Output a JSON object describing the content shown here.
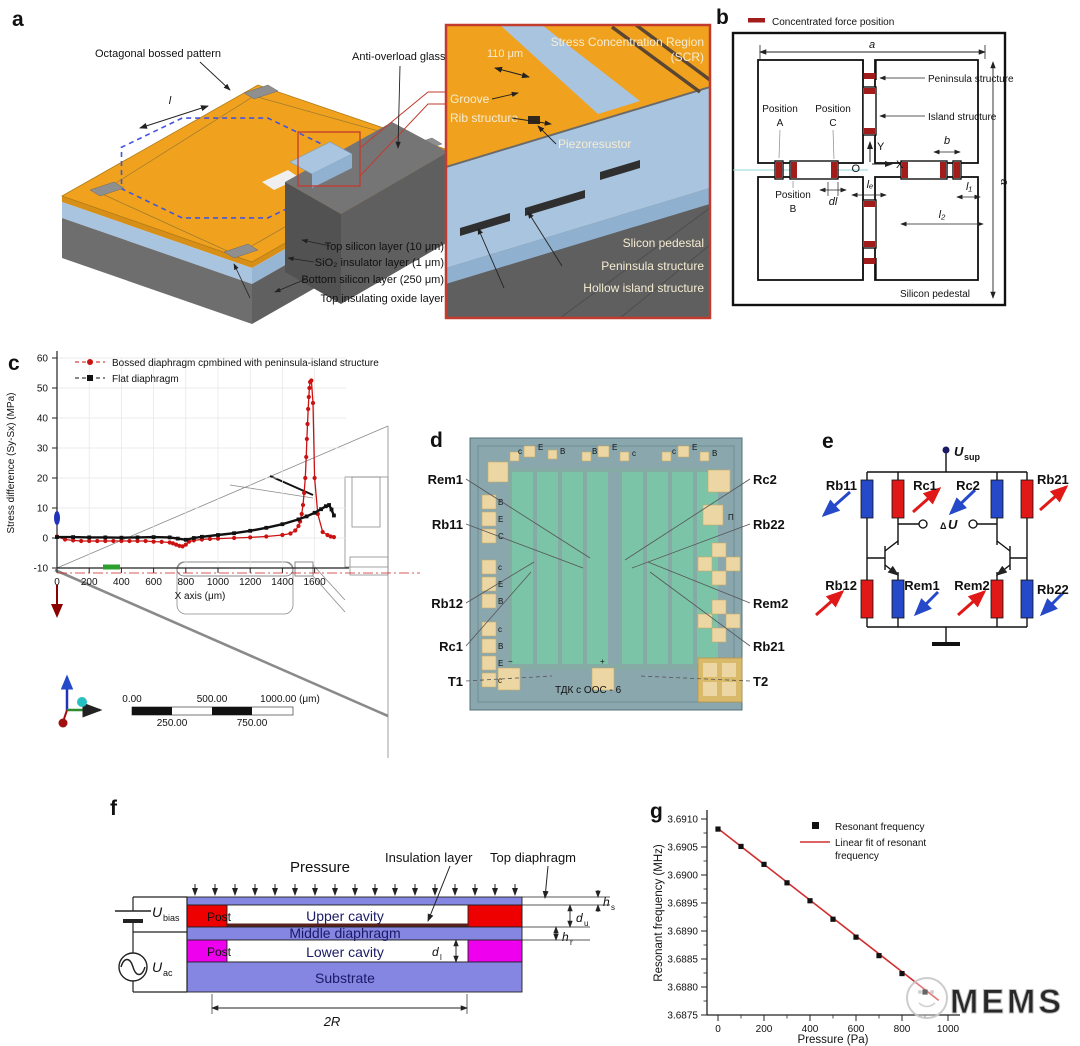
{
  "figure": {
    "watermark": "MEMS"
  },
  "colors": {
    "device_orange": "#f0a11e",
    "silicon_blue": "#a9c4de",
    "pedestal_gray": "#6e6e6e",
    "inset_border_red": "#c23b2e",
    "force_red": "#a21c1c",
    "resistor_red": "#e01818",
    "resistor_blue": "#2549c8",
    "layer_purple": "#8585e2",
    "post_red": "#ee0000",
    "post_magenta": "#ee00ee",
    "series_red": "#cc1111",
    "fit_red": "#d03030"
  },
  "panels": {
    "a": {
      "label": "a",
      "labels": {
        "octagonal": "Octagonal bossed pattern",
        "glass": "Anti-overload glass",
        "dim_l": "l",
        "top_si": "Top silicon layer (10 μm)",
        "sio2": "SiO₂ insulator layer (1 μm)",
        "bottom_si": "Bottom silicon layer (250 μm)",
        "top_oxide": "Top insulating oxide layer"
      },
      "inset": {
        "scr_line1": "Stress Concentration Region",
        "scr_line2": "(SCR)",
        "dim": "110 μm",
        "groove": "Groove",
        "rib": "Rib structure",
        "piezo": "Piezoresustor",
        "pedestal": "Slicon pedestal",
        "peninsula": "Peninsula structure",
        "hollow": "Hollow island structure"
      }
    },
    "b": {
      "label": "b",
      "legend": "Concentrated force position",
      "peninsula": "Peninsula structure",
      "island": "Island structure",
      "pos_word": "Position",
      "pos_a": "A",
      "pos_b": "B",
      "pos_c": "C",
      "pedestal": "Silicon pedestal",
      "axis_x": "X",
      "axis_y": "Y",
      "origin": "O",
      "dim_a": "a",
      "dim_b": "b",
      "dim_l1": "l₁",
      "dim_l2": "l₂",
      "dim_le": "lₑ",
      "dim_dl": "dl"
    },
    "c": {
      "label": "c",
      "scalebar": {
        "t0": "0.00",
        "t500": "500.00",
        "t1000": "1000.00 (μm)",
        "b250": "250.00",
        "b750": "750.00"
      }
    },
    "d": {
      "label": "d",
      "left_labels": [
        "Rem1",
        "Rb11",
        "Rb12",
        "Rc1",
        "T1"
      ],
      "right_labels": [
        "Rc2",
        "Rb22",
        "Rem2",
        "Rb21",
        "T2"
      ],
      "chip_text": "ТДК с ООС - 6",
      "pad_pi": "П",
      "minus": "−",
      "plus": "+",
      "top_letters": [
        "c",
        "E",
        "B",
        "B",
        "E",
        "c",
        "c",
        "E",
        "B"
      ],
      "left_letters": [
        "B",
        "E",
        "C",
        "c",
        "E",
        "B",
        "c",
        "B",
        "E",
        "c"
      ]
    },
    "e": {
      "label": "e",
      "supply_main": "U",
      "supply_sub": "sup",
      "delta": "Δ",
      "delta_u": "U",
      "r_top": [
        "Rb11",
        "Rc1",
        "Rc2",
        "Rb21"
      ],
      "r_bottom": [
        "Rb12",
        "Rem1",
        "Rem2",
        "Rb22"
      ]
    },
    "f": {
      "label": "f",
      "pressure": "Pressure",
      "insulation": "Insulation layer",
      "top_diaphragm": "Top diaphragm",
      "upper_cavity": "Upper cavity",
      "middle_diaphragm": "Middle diaphragm",
      "lower_cavity": "Lower cavity",
      "substrate": "Substrate",
      "post_upper": "Post",
      "post_lower": "Post",
      "u_bias_main": "U",
      "u_bias_sub": "bias",
      "u_ac_main": "U",
      "u_ac_sub": "ac",
      "dim_hs_main": "h",
      "dim_hs_sub": "s",
      "dim_du_main": "d",
      "dim_du_sub": "u",
      "dim_hr_main": "h",
      "dim_hr_sub": "r",
      "dim_dl_main": "d",
      "dim_dl_sub": "l",
      "dim_2r": "2R"
    },
    "g": {
      "label": "g",
      "legend1": "Resonant frequency",
      "legend2a": "Linear fit of resonant",
      "legend2b": "frequency"
    }
  },
  "chart_data": [
    {
      "id": "panel-c",
      "type": "line",
      "title": "",
      "xlabel": "X axis (μm)",
      "ylabel": "Stress difference (Sy-Sx) (MPa)",
      "xlim": [
        0,
        1780
      ],
      "ylim": [
        -10,
        60
      ],
      "grid": true,
      "legend_position": "top-left",
      "xticks": [
        0,
        200,
        400,
        600,
        800,
        1000,
        1200,
        1400,
        1600
      ],
      "yticks": [
        -10,
        0,
        10,
        20,
        30,
        40,
        50,
        60
      ],
      "series": [
        {
          "name": "Bossed diaphragm cpmbined with peninsula-island structure",
          "color": "#cc1111",
          "marker": "circle",
          "x": [
            0,
            50,
            100,
            150,
            200,
            250,
            300,
            350,
            400,
            450,
            500,
            550,
            600,
            650,
            700,
            720,
            740,
            760,
            780,
            800,
            820,
            850,
            900,
            950,
            1000,
            1100,
            1200,
            1300,
            1400,
            1450,
            1480,
            1500,
            1510,
            1520,
            1528,
            1535,
            1542,
            1548,
            1552,
            1556,
            1560,
            1564,
            1568,
            1572,
            1580,
            1590,
            1600,
            1620,
            1650,
            1680,
            1700,
            1720
          ],
          "y": [
            0.5,
            -0.5,
            -0.8,
            -1,
            -1,
            -1,
            -1,
            -1,
            -1,
            -1,
            -1,
            -1,
            -1.2,
            -1.3,
            -1.5,
            -1.8,
            -2.2,
            -2.6,
            -2.8,
            -2.2,
            -1.2,
            -0.8,
            -0.5,
            -0.3,
            -0.2,
            0,
            0.2,
            0.5,
            1,
            1.5,
            2.5,
            4,
            5.5,
            8,
            11,
            15,
            20,
            27,
            33,
            38,
            43,
            47,
            50,
            52,
            52.5,
            45,
            20,
            8,
            2,
            1,
            0.5,
            0.3
          ]
        },
        {
          "name": "Flat diaphragm",
          "color": "#111111",
          "marker": "square",
          "x": [
            0,
            100,
            200,
            300,
            400,
            500,
            600,
            700,
            750,
            800,
            850,
            900,
            1000,
            1100,
            1200,
            1300,
            1400,
            1500,
            1550,
            1600,
            1640,
            1670,
            1690,
            1705,
            1720
          ],
          "y": [
            0.3,
            0.3,
            0.2,
            0.2,
            0.1,
            0.2,
            0.3,
            0.2,
            -0.2,
            -0.6,
            0,
            0.4,
            1,
            1.6,
            2.4,
            3.4,
            4.6,
            6.2,
            7.2,
            8.4,
            9.6,
            10.6,
            11,
            9.5,
            7.5
          ]
        }
      ]
    },
    {
      "id": "panel-g",
      "type": "scatter",
      "xlabel": "Pressure (Pa)",
      "ylabel": "Resonant frequency (MHz)",
      "xlim": [
        -40,
        1060
      ],
      "ylim": [
        3.6873,
        3.6912
      ],
      "grid": false,
      "legend_position": "top-right",
      "xticks": [
        0,
        200,
        400,
        600,
        800,
        1000
      ],
      "xminor_step": 100,
      "ytick_labels": [
        "3.6875",
        "3.6880",
        "3.6885",
        "3.6890",
        "3.6895",
        "3.6900",
        "3.6905",
        "3.6910"
      ],
      "legend": [
        "Resonant frequency",
        "Linear fit of resonant frequency"
      ],
      "series": [
        {
          "name": "Resonant frequency",
          "color": "#111111",
          "marker": "square",
          "x": [
            0,
            100,
            200,
            300,
            400,
            500,
            600,
            700,
            800,
            900
          ],
          "y": [
            3.69082,
            3.69051,
            3.69019,
            3.68986,
            3.68954,
            3.68921,
            3.68889,
            3.68856,
            3.68824,
            3.68791
          ]
        }
      ],
      "fit": {
        "name": "Linear fit of resonant frequency",
        "color": "#d03030",
        "x": [
          0,
          960
        ],
        "y": [
          3.69083,
          3.68776
        ]
      }
    }
  ]
}
